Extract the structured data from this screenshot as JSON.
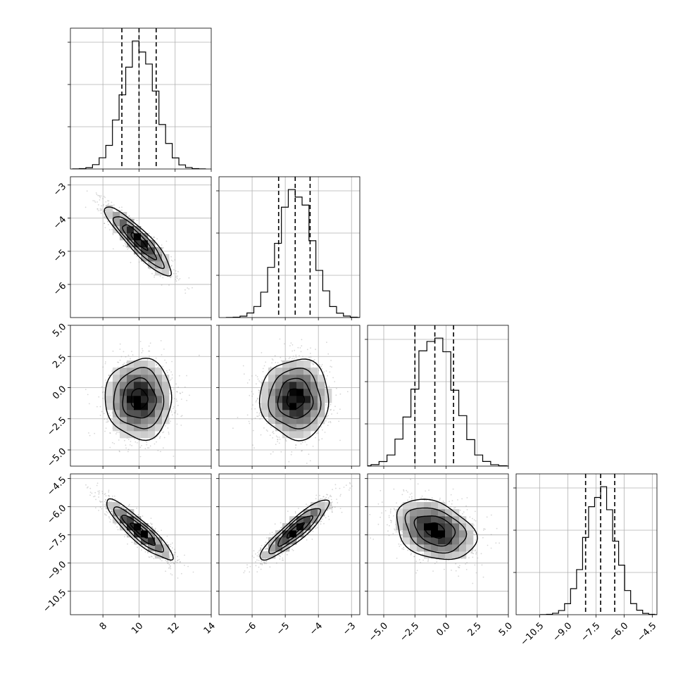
{
  "chart_data": {
    "type": "corner",
    "parameters": [
      {
        "range": [
          6.2,
          14.0
        ],
        "ticks": [
          8,
          10,
          12,
          14
        ],
        "tick_labels": [
          "8",
          "10",
          "12",
          "14"
        ],
        "mean": 10.0,
        "sd": 0.92,
        "quantiles": [
          9.05,
          10.0,
          10.95
        ]
      },
      {
        "range": [
          -7.0,
          -2.75
        ],
        "ticks": [
          -6,
          -5,
          -4,
          -3
        ],
        "tick_labels": [
          "−6",
          "−5",
          "−4",
          "−3"
        ],
        "mean": -4.7,
        "sd": 0.52,
        "quantiles": [
          -5.2,
          -4.7,
          -4.25
        ]
      },
      {
        "range": [
          -6.3,
          5.0
        ],
        "ticks": [
          -5,
          -2.5,
          0,
          2.5,
          5
        ],
        "tick_labels": [
          "−5.0",
          "−2.5",
          "0.0",
          "2.5",
          "5.0"
        ],
        "mean": -0.9,
        "sd": 1.6,
        "quantiles": [
          -2.5,
          -0.9,
          0.6
        ]
      },
      {
        "range": [
          -11.75,
          -4.25
        ],
        "ticks": [
          -10.5,
          -9,
          -7.5,
          -6,
          -4.5
        ],
        "tick_labels": [
          "−10.5",
          "−9.0",
          "−7.5",
          "−6.0",
          "−4.5"
        ],
        "mean": -7.25,
        "sd": 0.8,
        "quantiles": [
          -8.05,
          -7.25,
          -6.5
        ]
      }
    ],
    "correlations": [
      [
        1.0,
        -0.9,
        0.0,
        -0.9
      ],
      [
        -0.9,
        1.0,
        0.0,
        0.9
      ],
      [
        0.0,
        0.0,
        1.0,
        -0.3
      ],
      [
        -0.9,
        0.9,
        -0.3,
        1.0
      ]
    ],
    "hist_bins": 20,
    "contour_levels_sigma": [
      0.5,
      1.0,
      1.5,
      2.0
    ],
    "grid": true,
    "quantile_lines": "dashed"
  }
}
